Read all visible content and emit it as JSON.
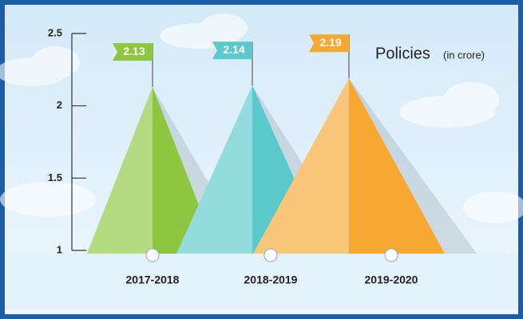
{
  "chart_data": {
    "type": "pyramid",
    "title": "Policies",
    "subtitle": "(in crore)",
    "categories": [
      "2017-2018",
      "2018-2019",
      "2019-2020"
    ],
    "values": [
      2.13,
      2.14,
      2.19
    ],
    "colors": [
      "#8dc63f",
      "#5bc8cc",
      "#f7a833"
    ],
    "ylim": [
      1,
      2.5
    ],
    "yticks": [
      1,
      1.5,
      2,
      2.5
    ]
  }
}
